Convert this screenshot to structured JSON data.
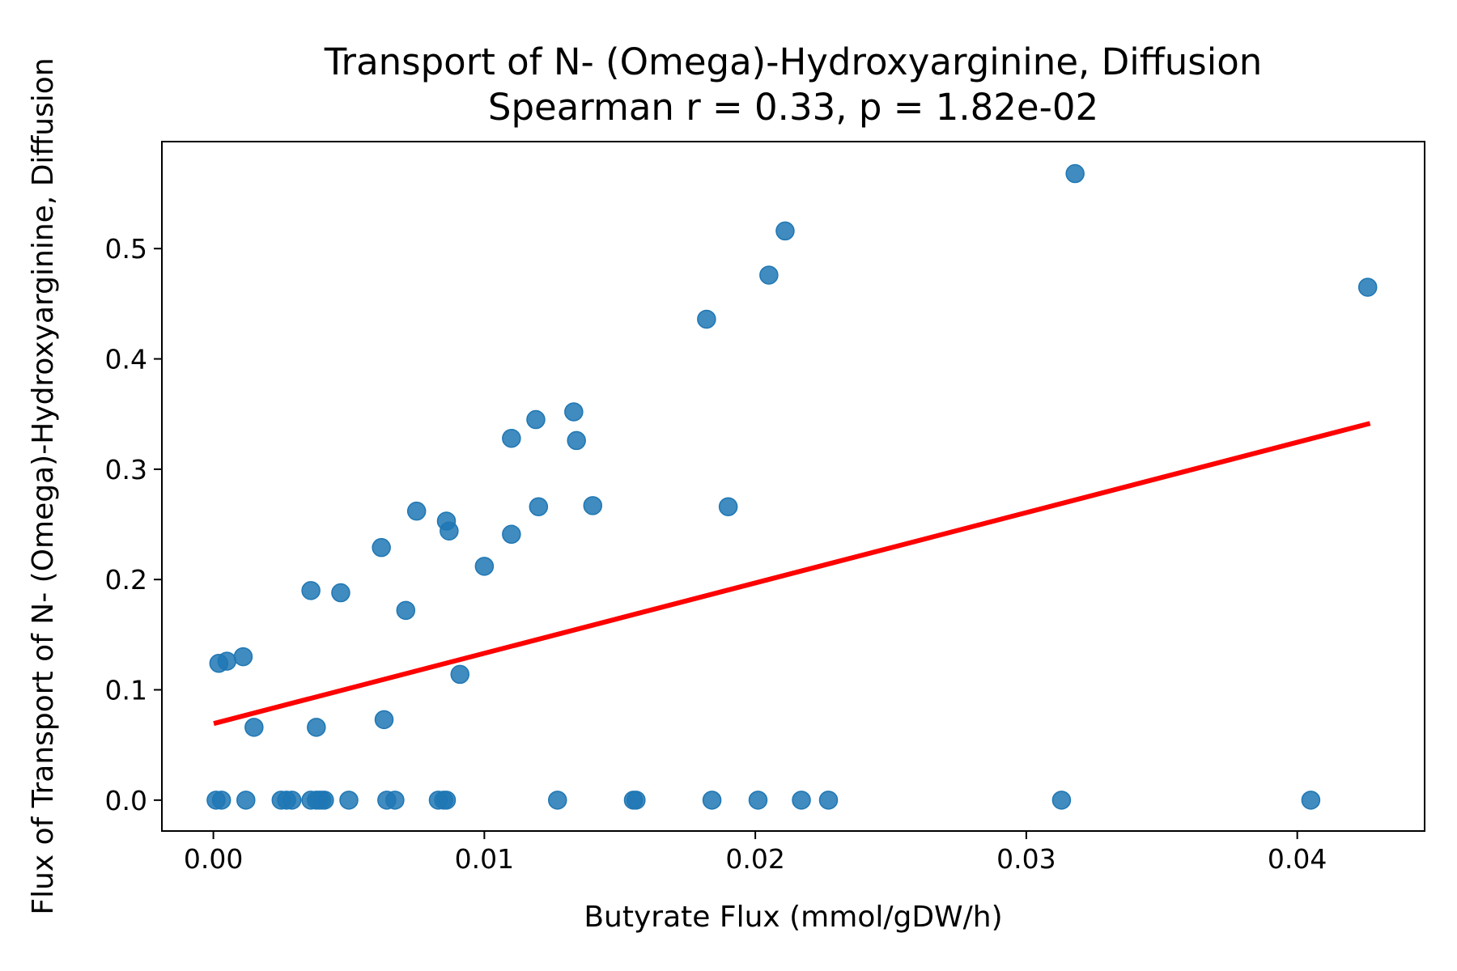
{
  "chart_data": {
    "type": "scatter",
    "title": "Transport of N- (Omega)-Hydroxyarginine, Diffusion",
    "subtitle": "Spearman r = 0.33, p = 1.82e-02",
    "xlabel": "Butyrate Flux (mmol/gDW/h)",
    "ylabel": "Flux of Transport of N- (Omega)-Hydroxyarginine, Diffusion",
    "xlim": [
      -0.0019,
      0.0447
    ],
    "ylim": [
      -0.028,
      0.597
    ],
    "xticks": [
      0.0,
      0.01,
      0.02,
      0.03,
      0.04
    ],
    "xtick_labels": [
      "0.00",
      "0.01",
      "0.02",
      "0.03",
      "0.04"
    ],
    "yticks": [
      0.0,
      0.1,
      0.2,
      0.3,
      0.4,
      0.5
    ],
    "ytick_labels": [
      "0.0",
      "0.1",
      "0.2",
      "0.3",
      "0.4",
      "0.5"
    ],
    "grid": false,
    "legend": "none",
    "point_color": "#1f77b4",
    "line_color": "#ff0000",
    "series": [
      {
        "points": [
          {
            "x": 0.0002,
            "y": 0.124
          },
          {
            "x": 0.0005,
            "y": 0.126
          },
          {
            "x": 0.0011,
            "y": 0.13
          },
          {
            "x": 0.0015,
            "y": 0.066
          },
          {
            "x": 0.0036,
            "y": 0.19
          },
          {
            "x": 0.0038,
            "y": 0.066
          },
          {
            "x": 0.0047,
            "y": 0.188
          },
          {
            "x": 0.0062,
            "y": 0.229
          },
          {
            "x": 0.0063,
            "y": 0.073
          },
          {
            "x": 0.0071,
            "y": 0.172
          },
          {
            "x": 0.0075,
            "y": 0.262
          },
          {
            "x": 0.0086,
            "y": 0.253
          },
          {
            "x": 0.0087,
            "y": 0.244
          },
          {
            "x": 0.0091,
            "y": 0.114
          },
          {
            "x": 0.01,
            "y": 0.212
          },
          {
            "x": 0.011,
            "y": 0.328
          },
          {
            "x": 0.011,
            "y": 0.241
          },
          {
            "x": 0.0119,
            "y": 0.345
          },
          {
            "x": 0.012,
            "y": 0.266
          },
          {
            "x": 0.0133,
            "y": 0.352
          },
          {
            "x": 0.0134,
            "y": 0.326
          },
          {
            "x": 0.014,
            "y": 0.267
          },
          {
            "x": 0.0182,
            "y": 0.436
          },
          {
            "x": 0.019,
            "y": 0.266
          },
          {
            "x": 0.0205,
            "y": 0.476
          },
          {
            "x": 0.0211,
            "y": 0.516
          },
          {
            "x": 0.0318,
            "y": 0.568
          },
          {
            "x": 0.0426,
            "y": 0.465
          },
          {
            "x": 0.0001,
            "y": 0.0
          },
          {
            "x": 0.0003,
            "y": 0.0
          },
          {
            "x": 0.0012,
            "y": 0.0
          },
          {
            "x": 0.0025,
            "y": 0.0
          },
          {
            "x": 0.0027,
            "y": 0.0
          },
          {
            "x": 0.0029,
            "y": 0.0
          },
          {
            "x": 0.0036,
            "y": 0.0
          },
          {
            "x": 0.0038,
            "y": 0.0
          },
          {
            "x": 0.0039,
            "y": 0.0
          },
          {
            "x": 0.004,
            "y": 0.0
          },
          {
            "x": 0.0041,
            "y": 0.0
          },
          {
            "x": 0.005,
            "y": 0.0
          },
          {
            "x": 0.0064,
            "y": 0.0
          },
          {
            "x": 0.0067,
            "y": 0.0
          },
          {
            "x": 0.0083,
            "y": 0.0
          },
          {
            "x": 0.0085,
            "y": 0.0
          },
          {
            "x": 0.0086,
            "y": 0.0
          },
          {
            "x": 0.0127,
            "y": 0.0
          },
          {
            "x": 0.0155,
            "y": 0.0
          },
          {
            "x": 0.0156,
            "y": 0.0
          },
          {
            "x": 0.0184,
            "y": 0.0
          },
          {
            "x": 0.0201,
            "y": 0.0
          },
          {
            "x": 0.0217,
            "y": 0.0
          },
          {
            "x": 0.0227,
            "y": 0.0
          },
          {
            "x": 0.0313,
            "y": 0.0
          },
          {
            "x": 0.0405,
            "y": 0.0
          }
        ]
      }
    ],
    "trend_line": {
      "x": [
        0.0001,
        0.0426
      ],
      "y": [
        0.07,
        0.341
      ]
    }
  }
}
